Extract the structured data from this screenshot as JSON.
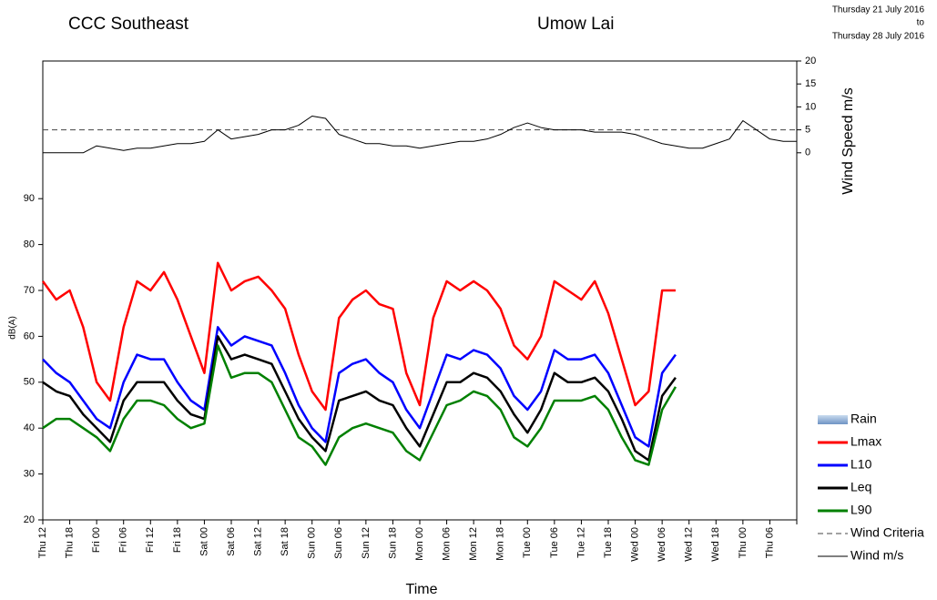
{
  "chart_data": {
    "type": "line",
    "title": "CCC Southeast",
    "subtitle": "Umow Lai",
    "date_from": "Thursday  21 July 2016",
    "date_sep": "to",
    "date_to": "Thursday  28 July 2016",
    "xlabel": "Time",
    "ylabel": "dB(A)",
    "y2label": "Wind Speed m/s",
    "categories": [
      "Thu 12",
      null,
      "Thu 18",
      null,
      "Fri 00",
      null,
      "Fri 06",
      null,
      "Fri 12",
      null,
      "Fri 18",
      null,
      "Sat 00",
      null,
      "Sat 06",
      null,
      "Sat 12",
      null,
      "Sat 18",
      null,
      "Sun 00",
      null,
      "Sun 06",
      null,
      "Sun 12",
      null,
      "Sun 18",
      null,
      "Mon 00",
      null,
      "Mon 06",
      null,
      "Mon 12",
      null,
      "Mon 18",
      null,
      "Tue 00",
      null,
      "Tue 06",
      null,
      "Tue 12",
      null,
      "Tue 18",
      null,
      "Wed 00",
      null,
      "Wed 06",
      null,
      "Wed 12",
      null,
      "Wed 18",
      null,
      "Thu 00",
      null,
      "Thu 06",
      null,
      null
    ],
    "ylim": [
      20,
      120
    ],
    "yticks": [
      20,
      30,
      40,
      50,
      60,
      70,
      80,
      90
    ],
    "y2lim": [
      -80,
      20
    ],
    "y2ticks": [
      0,
      5,
      10,
      15,
      20
    ],
    "reference_lines": [
      {
        "name": "Wind Criteria",
        "value": 5,
        "axis": "y2",
        "color": "#444444"
      }
    ],
    "series": [
      {
        "name": "Rain",
        "color": "#8fb0d8",
        "kind": "bar",
        "values": [
          null,
          null,
          null,
          null,
          null,
          null,
          null,
          null,
          null,
          null,
          null,
          null,
          null,
          null,
          null,
          null,
          null,
          null,
          null,
          null,
          null,
          null,
          null,
          null,
          null,
          null,
          null,
          null,
          null,
          null,
          null,
          null,
          null,
          null,
          null,
          null,
          null,
          null,
          null,
          null,
          null,
          null,
          null,
          null,
          null,
          null,
          null,
          null,
          null,
          null,
          null,
          null,
          null,
          null,
          null,
          null,
          null
        ]
      },
      {
        "name": "Lmax",
        "color": "#ff0000",
        "values": [
          72,
          68,
          70,
          62,
          50,
          46,
          62,
          72,
          70,
          74,
          68,
          60,
          52,
          76,
          70,
          72,
          73,
          70,
          66,
          56,
          48,
          44,
          64,
          68,
          70,
          67,
          66,
          52,
          45,
          64,
          72,
          70,
          72,
          70,
          66,
          58,
          55,
          60,
          72,
          70,
          68,
          72,
          65,
          55,
          45,
          48,
          70,
          70,
          null,
          null,
          null,
          null,
          null,
          null,
          null,
          null,
          null
        ]
      },
      {
        "name": "L10",
        "color": "#0000ff",
        "values": [
          55,
          52,
          50,
          46,
          42,
          40,
          50,
          56,
          55,
          55,
          50,
          46,
          44,
          62,
          58,
          60,
          59,
          58,
          52,
          45,
          40,
          37,
          52,
          54,
          55,
          52,
          50,
          44,
          40,
          48,
          56,
          55,
          57,
          56,
          53,
          47,
          44,
          48,
          57,
          55,
          55,
          56,
          52,
          45,
          38,
          36,
          52,
          56,
          null,
          null,
          null,
          null,
          null,
          null,
          null,
          null,
          null
        ]
      },
      {
        "name": "Leq",
        "color": "#000000",
        "values": [
          50,
          48,
          47,
          43,
          40,
          37,
          46,
          50,
          50,
          50,
          46,
          43,
          42,
          60,
          55,
          56,
          55,
          54,
          48,
          42,
          38,
          35,
          46,
          47,
          48,
          46,
          45,
          40,
          36,
          43,
          50,
          50,
          52,
          51,
          48,
          43,
          39,
          44,
          52,
          50,
          50,
          51,
          48,
          42,
          35,
          33,
          47,
          51,
          null,
          null,
          null,
          null,
          null,
          null,
          null,
          null,
          null
        ]
      },
      {
        "name": "L90",
        "color": "#008000",
        "values": [
          40,
          42,
          42,
          40,
          38,
          35,
          42,
          46,
          46,
          45,
          42,
          40,
          41,
          58,
          51,
          52,
          52,
          50,
          44,
          38,
          36,
          32,
          38,
          40,
          41,
          40,
          39,
          35,
          33,
          39,
          45,
          46,
          48,
          47,
          44,
          38,
          36,
          40,
          46,
          46,
          46,
          47,
          44,
          38,
          33,
          32,
          44,
          49,
          null,
          null,
          null,
          null,
          null,
          null,
          null,
          null,
          null
        ]
      },
      {
        "name": "Wind m/s",
        "color": "#000000",
        "axis": "y2",
        "values": [
          0,
          0,
          0,
          0,
          1.5,
          1,
          0.5,
          1,
          1,
          1.5,
          2,
          2,
          2.5,
          5,
          3,
          3.5,
          4,
          5,
          5,
          6,
          8,
          7.5,
          4,
          3,
          2,
          2,
          1.5,
          1.5,
          1,
          1.5,
          2,
          2.5,
          2.5,
          3,
          4,
          5.5,
          6.5,
          5.5,
          5,
          5,
          5,
          4.5,
          4.5,
          4.5,
          4,
          3,
          2,
          1.5,
          1,
          1,
          2,
          3,
          7,
          5,
          3,
          2.5,
          2.5
        ]
      }
    ]
  }
}
